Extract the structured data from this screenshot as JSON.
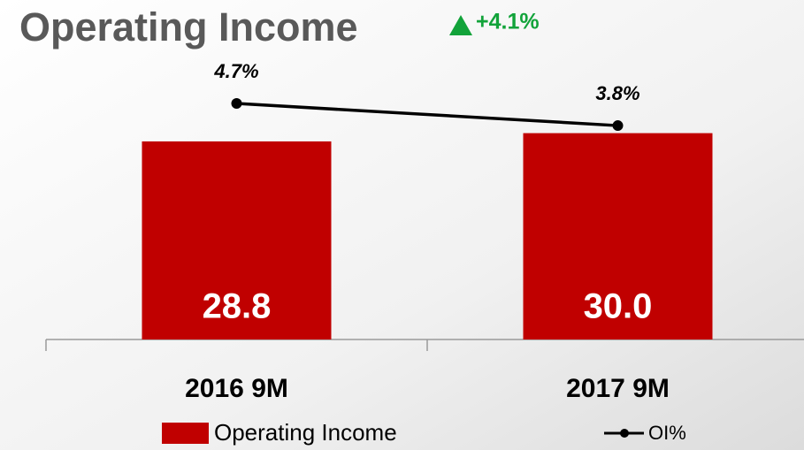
{
  "chart_data": {
    "type": "bar",
    "title": "Operating Income",
    "annotation": "+4.1%",
    "categories": [
      "2016 9M",
      "2017 9M"
    ],
    "series": [
      {
        "name": "Operating Income",
        "type": "bar",
        "color": "#c00000",
        "values": [
          28.8,
          30.0
        ],
        "value_labels": [
          "28.8",
          "30.0"
        ]
      },
      {
        "name": "OI%",
        "type": "line",
        "color": "#000000",
        "values": [
          4.7,
          3.8
        ],
        "value_labels": [
          "4.7%",
          "3.8%"
        ]
      }
    ]
  }
}
